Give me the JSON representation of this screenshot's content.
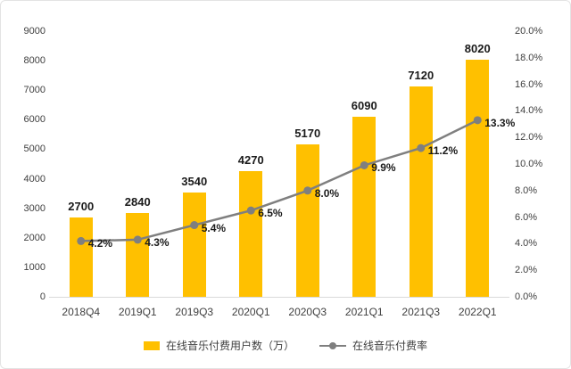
{
  "chart_data": {
    "type": "combo",
    "categories": [
      "2018Q4",
      "2019Q1",
      "2019Q3",
      "2020Q1",
      "2020Q3",
      "2021Q1",
      "2021Q3",
      "2022Q1"
    ],
    "series": [
      {
        "name": "在线音乐付费用户数（万）",
        "type": "bar",
        "axis": "left",
        "values": [
          2700,
          2840,
          3540,
          4270,
          5170,
          6090,
          7120,
          8020
        ],
        "labels": [
          "2700",
          "2840",
          "3540",
          "4270",
          "5170",
          "6090",
          "7120",
          "8020"
        ],
        "color": "#FFC000"
      },
      {
        "name": "在线音乐付费率",
        "type": "line",
        "axis": "right",
        "values": [
          4.2,
          4.3,
          5.4,
          6.5,
          8.0,
          9.9,
          11.2,
          13.3
        ],
        "labels": [
          "4.2%",
          "4.3%",
          "5.4%",
          "6.5%",
          "8.0%",
          "9.9%",
          "11.2%",
          "13.3%"
        ],
        "color": "#7F7F7F"
      }
    ],
    "left_axis": {
      "min": 0,
      "max": 9000,
      "step": 1000,
      "ticks": [
        "0",
        "1000",
        "2000",
        "3000",
        "4000",
        "5000",
        "6000",
        "7000",
        "8000",
        "9000"
      ]
    },
    "right_axis": {
      "min": 0,
      "max": 20,
      "step": 2,
      "ticks": [
        "0.0%",
        "2.0%",
        "4.0%",
        "6.0%",
        "8.0%",
        "10.0%",
        "12.0%",
        "14.0%",
        "16.0%",
        "18.0%",
        "20.0%"
      ]
    },
    "grid": false,
    "legend_position": "bottom"
  }
}
